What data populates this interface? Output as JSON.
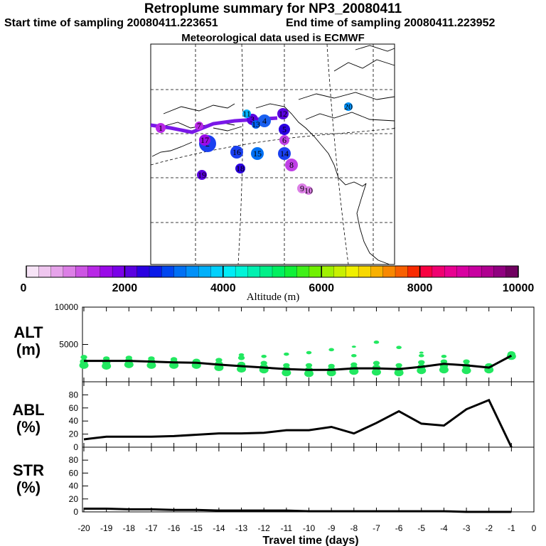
{
  "header": {
    "title": "Retroplume summary for NP3_20080411",
    "start_label": "Start time of sampling 20080411.223651",
    "end_label": "End time of sampling 20080411.223952",
    "met_label": "Meteorological data used is ECMWF"
  },
  "map": {
    "point_labels": [
      "1",
      "2",
      "3",
      "4",
      "5",
      "6",
      "7",
      "8",
      "9",
      "10",
      "11",
      "12",
      "13",
      "14",
      "15",
      "16",
      "17",
      "18",
      "19",
      "20"
    ]
  },
  "colorbar": {
    "min": 0,
    "max": 10000,
    "tick_labels": [
      "0",
      "2000",
      "4000",
      "6000",
      "8000",
      "10000"
    ],
    "title": "Altitude (m)",
    "colors": [
      "#f7e4f7",
      "#efc6ef",
      "#e6a3ea",
      "#dc7fe6",
      "#cc55e3",
      "#b828e6",
      "#9a0ae8",
      "#7a00e8",
      "#5a00e0",
      "#2a00e0",
      "#0a1ae8",
      "#0046f0",
      "#0070f4",
      "#0090f8",
      "#00b0fa",
      "#00d0fc",
      "#00ecf6",
      "#00f4d8",
      "#00f0b0",
      "#00f088",
      "#00f060",
      "#10f038",
      "#40f018",
      "#70f000",
      "#a0f000",
      "#c8f000",
      "#f0f000",
      "#f8d800",
      "#f8b000",
      "#f88800",
      "#f86000",
      "#f82a00",
      "#f80040",
      "#f00070",
      "#e80090",
      "#d800a0",
      "#c800a0",
      "#b00090",
      "#900080",
      "#700060"
    ]
  },
  "xaxis": {
    "title": "Travel time (days)",
    "tick_labels": [
      "-20",
      "-19",
      "-18",
      "-17",
      "-16",
      "-15",
      "-14",
      "-13",
      "-12",
      "-11",
      "-10",
      "-9",
      "-8",
      "-7",
      "-6",
      "-5",
      "-4",
      "-3",
      "-2",
      "-1",
      "0"
    ]
  },
  "chart_data": [
    {
      "type": "line",
      "name": "ALT",
      "ylabel_top": "ALT",
      "ylabel_bottom": "(m)",
      "ylim": [
        0,
        10000
      ],
      "ytick_labels": [
        "5000",
        "10000"
      ],
      "x": [
        -20,
        -19,
        -18,
        -17,
        -16,
        -15,
        -14,
        -13,
        -12,
        -11,
        -10,
        -9,
        -8,
        -7,
        -6,
        -5,
        -4,
        -3,
        -2,
        -1
      ],
      "values": [
        2800,
        2800,
        2800,
        2700,
        2600,
        2550,
        2300,
        2100,
        1900,
        1700,
        1600,
        1600,
        1800,
        1800,
        1700,
        2000,
        2400,
        2200,
        1900,
        3500
      ],
      "scatter_color": "#22e860",
      "scatter": [
        {
          "x": -20,
          "y": [
            2200,
            2700,
            3300
          ]
        },
        {
          "x": -19,
          "y": [
            2100,
            2600,
            3100
          ]
        },
        {
          "x": -18,
          "y": [
            2300,
            2800,
            3200
          ]
        },
        {
          "x": -17,
          "y": [
            2200,
            2700,
            3100
          ]
        },
        {
          "x": -16,
          "y": [
            2200,
            2600,
            3000
          ]
        },
        {
          "x": -15,
          "y": [
            2200,
            2700
          ]
        },
        {
          "x": -14,
          "y": [
            1900,
            2400,
            2900
          ]
        },
        {
          "x": -13,
          "y": [
            1700,
            2300,
            3200,
            3600
          ]
        },
        {
          "x": -12,
          "y": [
            1600,
            2000,
            2500,
            3400
          ]
        },
        {
          "x": -11,
          "y": [
            1200,
            1700,
            2200,
            3700
          ]
        },
        {
          "x": -10,
          "y": [
            1100,
            1600,
            2200,
            3900
          ]
        },
        {
          "x": -9,
          "y": [
            1200,
            1600,
            2100,
            4300
          ]
        },
        {
          "x": -8,
          "y": [
            1400,
            1800,
            2300,
            3500,
            4700
          ]
        },
        {
          "x": -7,
          "y": [
            1300,
            1900,
            2500,
            5300
          ]
        },
        {
          "x": -6,
          "y": [
            1200,
            1600,
            2200,
            4600
          ]
        },
        {
          "x": -5,
          "y": [
            1500,
            2000,
            2600,
            3500,
            3900
          ]
        },
        {
          "x": -4,
          "y": [
            1600,
            2100,
            2700,
            3400
          ]
        },
        {
          "x": -3,
          "y": [
            1500,
            2100,
            2700
          ]
        },
        {
          "x": -2,
          "y": [
            1600,
            2100
          ]
        },
        {
          "x": -1,
          "y": [
            3400,
            3700
          ]
        }
      ]
    },
    {
      "type": "line",
      "name": "ABL",
      "ylabel_top": "ABL",
      "ylabel_bottom": "(%)",
      "ylim": [
        0,
        100
      ],
      "ytick_labels": [
        "0",
        "20",
        "40",
        "60",
        "80"
      ],
      "x": [
        -20,
        -19,
        -18,
        -17,
        -16,
        -15,
        -14,
        -13,
        -12,
        -11,
        -10,
        -9,
        -8,
        -7,
        -6,
        -5,
        -4,
        -3,
        -2,
        -1
      ],
      "values": [
        12,
        16,
        16,
        16,
        17,
        19,
        21,
        21,
        22,
        26,
        26,
        31,
        21,
        37,
        55,
        36,
        33,
        58,
        72,
        0
      ]
    },
    {
      "type": "line",
      "name": "STR",
      "ylabel_top": "STR",
      "ylabel_bottom": "(%)",
      "ylim": [
        0,
        100
      ],
      "ytick_labels": [
        "0",
        "20",
        "40",
        "60",
        "80"
      ],
      "x": [
        -20,
        -19,
        -18,
        -17,
        -16,
        -15,
        -14,
        -13,
        -12,
        -11,
        -10,
        -9,
        -8,
        -7,
        -6,
        -5,
        -4,
        -3,
        -2,
        -1
      ],
      "values": [
        5,
        5,
        4,
        4,
        3,
        3,
        2,
        2,
        2,
        2,
        1,
        1,
        1,
        1,
        1,
        1,
        1,
        0,
        0,
        0
      ]
    }
  ]
}
